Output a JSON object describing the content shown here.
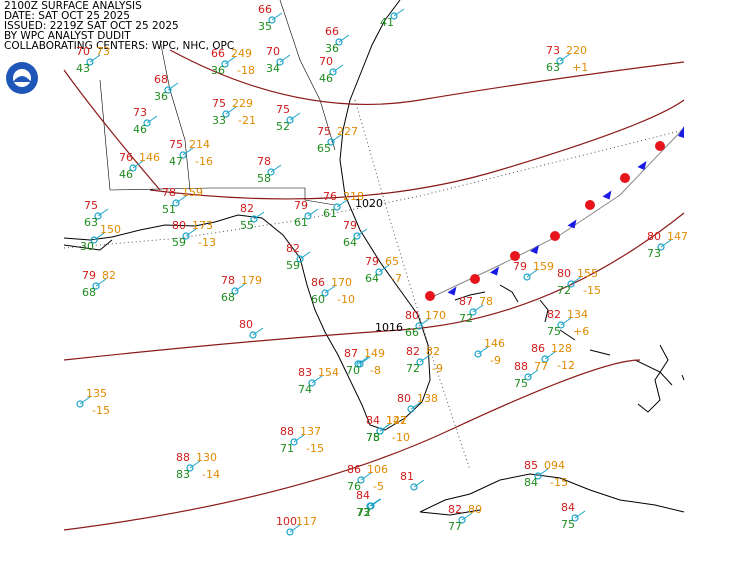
{
  "header": {
    "lines": [
      "2100Z SURFACE ANALYSIS",
      "DATE: SAT OCT 25 2025",
      "ISSUED: 2219Z SAT OCT 25 2025",
      "BY WPC ANALYST DUDIT",
      "COLLABORATING CENTERS: WPC, NHC, OPC"
    ]
  },
  "isobar_labels": [
    "1020",
    "1016"
  ],
  "stations": [
    {
      "temp": "66",
      "dewpoint": "35"
    },
    {
      "temp": "66",
      "dewpoint": "36"
    },
    {
      "dewpoint": "41"
    },
    {
      "temp": "66",
      "pressure": "249",
      "dewpoint": "36",
      "tendency": "-18"
    },
    {
      "temp": "70",
      "dewpoint": "34"
    },
    {
      "temp": "70",
      "dewpoint": "46"
    },
    {
      "temp": "70",
      "dewpoint": "43",
      "pressure": "73"
    },
    {
      "temp": "68",
      "dewpoint": "36"
    },
    {
      "temp": "73",
      "dewpoint": "46"
    },
    {
      "temp": "75",
      "pressure": "229",
      "dewpoint": "33",
      "tendency": "-21"
    },
    {
      "temp": "75",
      "dewpoint": "52"
    },
    {
      "temp": "75",
      "pressure": "227",
      "dewpoint": "65"
    },
    {
      "temp": "75",
      "pressure": "214",
      "dewpoint": "47",
      "tendency": "-16"
    },
    {
      "temp": "76",
      "pressure": "146",
      "dewpoint": "46"
    },
    {
      "temp": "78",
      "dewpoint": "58"
    },
    {
      "temp": "78",
      "pressure": "159",
      "dewpoint": "51"
    },
    {
      "temp": "76",
      "pressure": "218",
      "dewpoint": "61"
    },
    {
      "temp": "75",
      "dewpoint": "63"
    },
    {
      "temp": "79",
      "dewpoint": "61"
    },
    {
      "temp": "82",
      "dewpoint": "55"
    },
    {
      "temp": "80",
      "pressure": "173",
      "dewpoint": "59",
      "tendency": "-13"
    },
    {
      "temp": "79",
      "dewpoint": "64"
    },
    {
      "pressure": "150",
      "dewpoint": "30"
    },
    {
      "temp": "82",
      "dewpoint": "59"
    },
    {
      "temp": "79",
      "pressure": "65",
      "dewpoint": "64",
      "tendency": "-7"
    },
    {
      "temp": "79",
      "pressure": "82",
      "dewpoint": "68"
    },
    {
      "temp": "78",
      "pressure": "179",
      "dewpoint": "68"
    },
    {
      "temp": "86",
      "pressure": "170",
      "dewpoint": "60",
      "tendency": "-10"
    },
    {
      "temp": "79",
      "pressure": "159"
    },
    {
      "temp": "80",
      "pressure": "155",
      "dewpoint": "72",
      "tendency": "-15"
    },
    {
      "temp": "80",
      "pressure": "147",
      "dewpoint": "73"
    },
    {
      "temp": "80"
    },
    {
      "temp": "80",
      "pressure": "170",
      "dewpoint": "66"
    },
    {
      "temp": "87",
      "pressure": "78",
      "dewpoint": "72"
    },
    {
      "temp": "82",
      "pressure": "134",
      "dewpoint": "75",
      "tendency": "+6"
    },
    {
      "temp": "87",
      "pressure": "149",
      "tendency": "-8"
    },
    {
      "temp": "82",
      "pressure": "82",
      "dewpoint": "72",
      "tendency": "-9"
    },
    {
      "pressure": "146",
      "tendency": "-9"
    },
    {
      "temp": "86",
      "pressure": "128",
      "tendency": "-12"
    },
    {
      "temp": "88",
      "pressure": "77",
      "dewpoint": "75"
    },
    {
      "temp": "83",
      "pressure": "154",
      "dewpoint": "74"
    },
    {
      "dewpoint": "70"
    },
    {
      "temp": "80",
      "pressure": "138"
    },
    {
      "temp": "84",
      "pressure": "142",
      "dewpoint": "78"
    },
    {
      "temp": "88",
      "pressure": "137",
      "dewpoint": "71",
      "tendency": "-15"
    },
    {
      "dewpoint": "75",
      "pressure": "127",
      "tendency": "-10"
    },
    {
      "temp": "88",
      "pressure": "130",
      "dewpoint": "83",
      "tendency": "-14"
    },
    {
      "temp": "86",
      "pressure": "106",
      "dewpoint": "76",
      "tendency": "-5"
    },
    {
      "temp": "81"
    },
    {
      "temp": "84",
      "dewpoint": "73"
    },
    {
      "temp": "85",
      "pressure": "094",
      "dewpoint": "84",
      "tendency": "-15"
    },
    {
      "dewpoint": "72"
    },
    {
      "temp": "82",
      "dewpoint": "77",
      "pressure": "80"
    },
    {
      "temp": "84",
      "dewpoint": "75"
    },
    {
      "temp": "100",
      "pressure": "117"
    },
    {
      "pressure": "135",
      "tendency": "-15"
    },
    {
      "temp": "73",
      "pressure": "220",
      "dewpoint": "63",
      "tendency": "+1"
    }
  ]
}
